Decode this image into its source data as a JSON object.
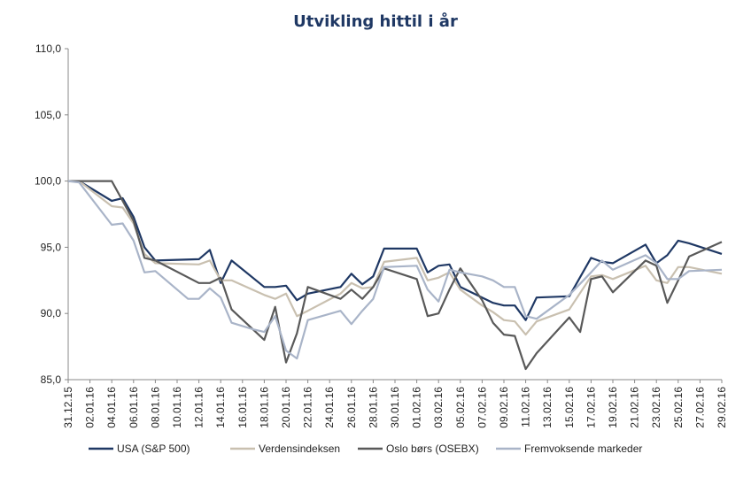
{
  "chart_data": {
    "type": "line",
    "title": "Utvikling hittil i år",
    "xlabel": "",
    "ylabel": "",
    "ylim": [
      85,
      110
    ],
    "yticks": [
      "85,0",
      "90,0",
      "95,0",
      "100,0",
      "105,0",
      "110,0"
    ],
    "ytick_values": [
      85,
      90,
      95,
      100,
      105,
      110
    ],
    "x_tick_labels": [
      "31.12.15",
      "02.01.16",
      "04.01.16",
      "06.01.16",
      "08.01.16",
      "10.01.16",
      "12.01.16",
      "14.01.16",
      "16.01.16",
      "18.01.16",
      "20.01.16",
      "22.01.16",
      "24.01.16",
      "26.01.16",
      "28.01.16",
      "30.01.16",
      "01.02.16",
      "03.02.16",
      "05.02.16",
      "07.02.16",
      "09.02.16",
      "11.02.16",
      "13.02.16",
      "15.02.16",
      "17.02.16",
      "19.02.16",
      "21.02.16",
      "23.02.16",
      "25.02.16",
      "27.02.16",
      "29.02.16"
    ],
    "x_day_index": [
      0,
      2,
      4,
      6,
      8,
      10,
      12,
      14,
      16,
      18,
      20,
      22,
      24,
      26,
      28,
      30,
      32,
      34,
      36,
      38,
      40,
      42,
      44,
      46,
      48,
      50,
      52,
      54,
      56,
      58,
      60
    ],
    "grid": false,
    "legend_position": "bottom",
    "series": [
      {
        "name": "USA (S&P 500)",
        "color": "#1f3864",
        "x": [
          0,
          1,
          4,
          5,
          6,
          7,
          8,
          12,
          13,
          14,
          15,
          18,
          19,
          20,
          21,
          22,
          25,
          26,
          27,
          28,
          29,
          32,
          33,
          34,
          35,
          36,
          38,
          39,
          40,
          41,
          42,
          43,
          46,
          48,
          49,
          50,
          53,
          54,
          55,
          56,
          57,
          60
        ],
        "y": [
          100,
          100,
          98.5,
          98.7,
          97.3,
          95.0,
          94.0,
          94.1,
          94.8,
          92.3,
          94.0,
          92.0,
          92.0,
          92.1,
          91.0,
          91.5,
          92.0,
          93.0,
          92.2,
          92.8,
          94.9,
          94.9,
          93.1,
          93.6,
          93.7,
          92.0,
          91.2,
          90.8,
          90.6,
          90.6,
          89.5,
          91.2,
          91.3,
          94.2,
          93.9,
          93.8,
          95.2,
          93.8,
          94.4,
          95.5,
          95.3,
          94.5
        ]
      },
      {
        "name": "Verdensindeksen",
        "color": "#c9c0b0",
        "x": [
          0,
          1,
          4,
          5,
          6,
          7,
          8,
          12,
          13,
          14,
          15,
          18,
          19,
          20,
          21,
          22,
          25,
          26,
          27,
          28,
          29,
          32,
          33,
          34,
          35,
          36,
          38,
          39,
          40,
          41,
          42,
          43,
          46,
          48,
          49,
          50,
          53,
          54,
          55,
          56,
          57,
          60
        ],
        "y": [
          100,
          100,
          98.1,
          98.0,
          96.8,
          94.5,
          93.8,
          93.7,
          94.0,
          92.5,
          92.5,
          91.4,
          91.1,
          91.5,
          89.8,
          90.2,
          91.5,
          92.3,
          91.9,
          92.0,
          93.9,
          94.2,
          92.5,
          92.7,
          93.1,
          91.8,
          90.6,
          90.1,
          89.5,
          89.4,
          88.4,
          89.4,
          90.3,
          92.8,
          92.9,
          92.6,
          93.6,
          92.5,
          92.3,
          93.5,
          93.5,
          93.0
        ]
      },
      {
        "name": "Oslo børs (OSEBX)",
        "color": "#595959",
        "x": [
          0,
          1,
          2,
          3,
          4,
          5,
          6,
          7,
          8,
          12,
          13,
          14,
          15,
          18,
          19,
          20,
          21,
          22,
          25,
          26,
          27,
          28,
          29,
          32,
          33,
          34,
          35,
          36,
          38,
          39,
          40,
          41,
          42,
          43,
          46,
          47,
          48,
          49,
          50,
          53,
          54,
          55,
          56,
          57,
          60
        ],
        "y": [
          100,
          100,
          100,
          100,
          100,
          98.5,
          97.0,
          94.2,
          94.0,
          92.3,
          92.3,
          92.7,
          90.3,
          88.0,
          90.5,
          86.3,
          88.5,
          92.0,
          91.1,
          91.8,
          91.1,
          92.0,
          93.4,
          92.6,
          89.8,
          90.0,
          91.8,
          93.4,
          91.0,
          89.3,
          88.4,
          88.3,
          85.8,
          87.0,
          89.7,
          88.6,
          92.6,
          92.8,
          91.6,
          94.0,
          93.6,
          90.8,
          92.5,
          94.3,
          95.4
        ]
      },
      {
        "name": "Fremvoksende markeder",
        "color": "#a9b4c8",
        "x": [
          0,
          1,
          4,
          5,
          6,
          7,
          8,
          11,
          12,
          13,
          14,
          15,
          17,
          18,
          19,
          20,
          21,
          22,
          25,
          26,
          27,
          28,
          29,
          32,
          33,
          34,
          35,
          36,
          38,
          39,
          40,
          41,
          42,
          43,
          46,
          48,
          49,
          50,
          53,
          54,
          55,
          56,
          57,
          60
        ],
        "y": [
          100,
          99.9,
          96.7,
          96.8,
          95.5,
          93.1,
          93.2,
          91.1,
          91.1,
          91.9,
          91.2,
          89.3,
          88.8,
          88.6,
          89.8,
          87.2,
          86.6,
          89.5,
          90.2,
          89.2,
          90.2,
          91.1,
          93.5,
          93.6,
          91.8,
          90.9,
          93.3,
          93.1,
          92.8,
          92.5,
          92.0,
          92.0,
          89.8,
          89.6,
          91.4,
          93.1,
          94.0,
          93.3,
          94.4,
          93.8,
          92.6,
          92.6,
          93.2,
          93.3
        ]
      }
    ]
  }
}
